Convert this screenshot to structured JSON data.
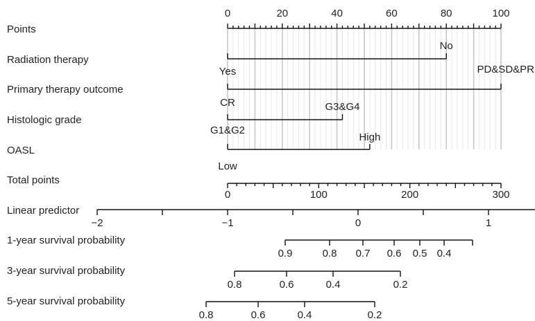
{
  "chart_data": {
    "type": "nomogram",
    "rows": [
      {
        "key": "points",
        "label": "Points"
      },
      {
        "key": "radiation",
        "label": "Radiation therapy"
      },
      {
        "key": "primary",
        "label": "Primary therapy outcome"
      },
      {
        "key": "grade",
        "label": "Histologic grade"
      },
      {
        "key": "oasl",
        "label": "OASL"
      },
      {
        "key": "total",
        "label": "Total points"
      },
      {
        "key": "lp",
        "label": "Linear predictor"
      },
      {
        "key": "s1",
        "label": "1-year survival probability"
      },
      {
        "key": "s3",
        "label": "3-year survival probability"
      },
      {
        "key": "s5",
        "label": "5-year survival probability"
      }
    ],
    "points_axis": {
      "range": [
        0,
        100
      ],
      "labels": [
        "0",
        "20",
        "40",
        "60",
        "80",
        "100"
      ],
      "label_values": [
        0,
        20,
        40,
        60,
        80,
        100
      ]
    },
    "variables": [
      {
        "key": "radiation",
        "levels": [
          {
            "name": "Yes",
            "points": 0
          },
          {
            "name": "No",
            "points": 80
          }
        ]
      },
      {
        "key": "primary",
        "levels": [
          {
            "name": "CR",
            "points": 0
          },
          {
            "name": "PD&SD&PR",
            "points": 100
          }
        ]
      },
      {
        "key": "grade",
        "levels": [
          {
            "name": "G1&G2",
            "points": 0
          },
          {
            "name": "G3&G4",
            "points": 42
          }
        ]
      },
      {
        "key": "oasl",
        "levels": [
          {
            "name": "Low",
            "points": 0
          },
          {
            "name": "High",
            "points": 52
          }
        ]
      }
    ],
    "total_points_axis": {
      "range": [
        0,
        300
      ],
      "labels": [
        "0",
        "100",
        "200",
        "300"
      ],
      "label_values": [
        0,
        100,
        200,
        300
      ]
    },
    "linear_predictor_axis": {
      "range": [
        -2,
        1.5
      ],
      "labels": [
        "−2",
        "−1",
        "0",
        "1"
      ],
      "label_values": [
        -2,
        -1,
        0,
        1
      ]
    },
    "survival_axes": [
      {
        "key": "s1",
        "labels": [
          "0.9",
          "0.8",
          "0.7",
          "0.6",
          "0.5",
          "0.4"
        ],
        "label_values": [
          0.9,
          0.8,
          0.7,
          0.6,
          0.5,
          0.4
        ]
      },
      {
        "key": "s3",
        "labels": [
          "0.8",
          "0.6",
          "0.4",
          "0.2"
        ],
        "label_values": [
          0.8,
          0.6,
          0.4,
          0.2
        ]
      },
      {
        "key": "s5",
        "labels": [
          "0.8",
          "0.6",
          "0.4",
          "0.2"
        ],
        "label_values": [
          0.8,
          0.6,
          0.4,
          0.2
        ]
      }
    ]
  }
}
